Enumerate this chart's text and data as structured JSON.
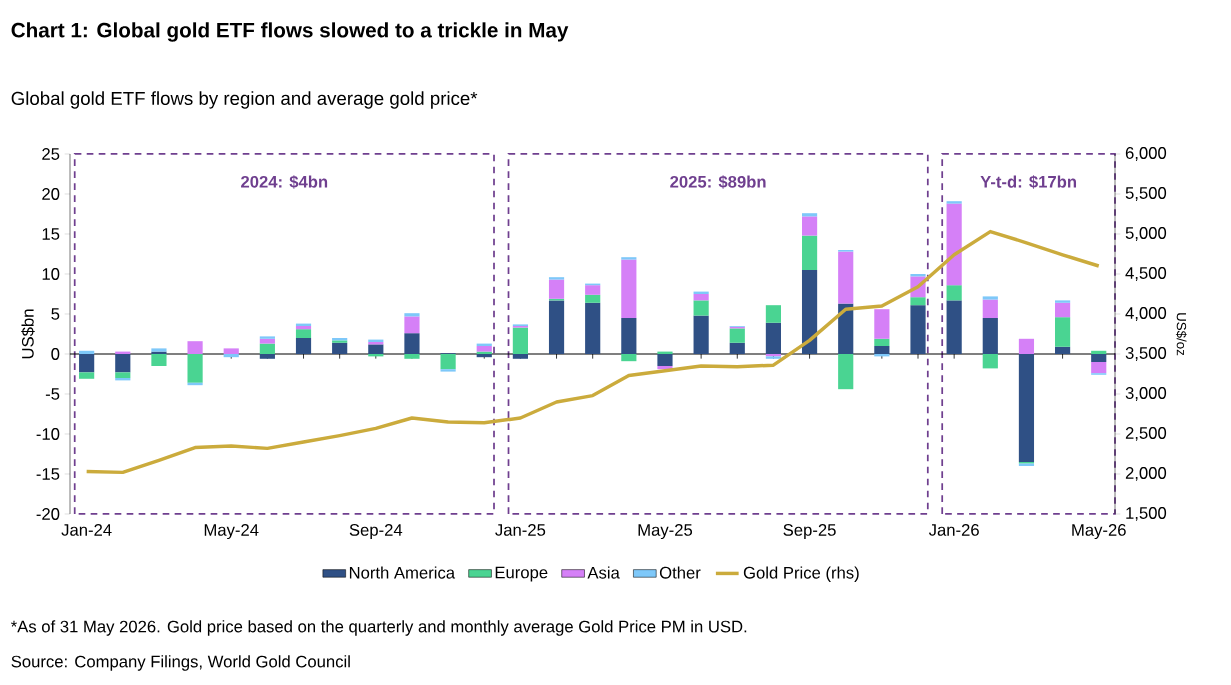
{
  "chart_data": {
    "type": "bar",
    "stacked": true,
    "title": "Chart 1: Global gold ETF flows slowed to a trickle in May",
    "subtitle": "Global gold ETF flows by region and average gold price*",
    "ylabel": "US$bn",
    "y2label": "US$/oz",
    "categories": [
      "Jan-24",
      null,
      null,
      null,
      "May-24",
      null,
      null,
      null,
      "Sep-24",
      null,
      null,
      null,
      "Jan-25",
      null,
      null,
      null,
      "May-25",
      null,
      null,
      null,
      "Sep-25",
      null,
      null,
      null,
      "Jan-26",
      null,
      null,
      null,
      "May-26"
    ],
    "series": [
      {
        "name": "North America",
        "color": "#2f5085",
        "values": [
          -2.3,
          -2.3,
          0.3,
          0,
          0,
          -0.6,
          2.0,
          1.4,
          1.2,
          2.6,
          0.1,
          -0.4,
          -0.6,
          6.7,
          6.4,
          4.5,
          -1.5,
          4.8,
          1.4,
          3.9,
          10.5,
          6.3,
          1.0,
          6.1,
          6.7,
          4.5,
          -13.5,
          0.9,
          -1.0
        ]
      },
      {
        "name": "Europe",
        "color": "#4ad492",
        "values": [
          -0.8,
          -0.7,
          -1.5,
          -3.6,
          0,
          1.3,
          1.1,
          0.3,
          -0.3,
          -0.6,
          -1.9,
          0.3,
          3.3,
          0.2,
          1.0,
          -0.9,
          0.3,
          1.9,
          1.8,
          2.2,
          4.3,
          -4.4,
          0.9,
          1.0,
          1.9,
          -1.8,
          -0.2,
          3.7,
          0.4
        ]
      },
      {
        "name": "Asia",
        "color": "#d580f7",
        "values": [
          0,
          0.3,
          0,
          1.6,
          0.7,
          0.6,
          0.4,
          null,
          0.3,
          2.1,
          0,
          0.7,
          0.2,
          2.4,
          1.2,
          7.3,
          -0.4,
          0.8,
          0.2,
          -0.3,
          2.4,
          6.5,
          3.7,
          2.6,
          10.2,
          2.3,
          1.9,
          1.8,
          -1.4
        ]
      },
      {
        "name": "Other",
        "color": "#7ec8f9",
        "values": [
          0.4,
          -0.3,
          0.4,
          -0.3,
          -0.4,
          0.3,
          0.3,
          0.3,
          0.3,
          0.4,
          -0.3,
          0.3,
          0.2,
          0.3,
          0.2,
          0.3,
          0,
          0.3,
          0.1,
          -0.3,
          0.4,
          0.2,
          -0.3,
          0.3,
          0.3,
          0.4,
          -0.3,
          0.3,
          -0.2
        ]
      },
      {
        "name": "Gold Price (rhs)",
        "color": "#cbab3c",
        "type": "line",
        "axis": "y2",
        "values": [
          2030,
          2020,
          2170,
          2330,
          2350,
          2320,
          2400,
          2480,
          2570,
          2700,
          2650,
          2640,
          2700,
          2900,
          2980,
          3230,
          3290,
          3350,
          3340,
          3360,
          3670,
          4060,
          4100,
          4340,
          4740,
          5030,
          4890,
          4740,
          4600
        ]
      }
    ],
    "ylim": [
      -20,
      25
    ],
    "yticks": [
      -20,
      -15,
      -10,
      -5,
      0,
      5,
      10,
      15,
      20,
      25
    ],
    "y2lim": [
      1500,
      6000
    ],
    "y2ticks": [
      {
        "value": 1500,
        "label": "1,500"
      },
      {
        "value": 2000,
        "label": "2,000"
      },
      {
        "value": 2500,
        "label": "2,500"
      },
      {
        "value": 3000,
        "label": "3,000"
      },
      {
        "value": 3500,
        "label": "3,500"
      },
      {
        "value": 4000,
        "label": "4,000"
      },
      {
        "value": 4500,
        "label": "4,500"
      },
      {
        "value": 5000,
        "label": "5,000"
      },
      {
        "value": 5500,
        "label": "5,500"
      },
      {
        "value": 6000,
        "label": "6,000"
      }
    ],
    "legend": "bottom",
    "annotations": [
      "2024: $4bn",
      "2025: $89bn",
      "Y-t-d: $17bn",
      "*As of 31 May 2026. Gold price based on the quarterly and monthly average Gold Price PM in USD.",
      "Source: Company Filings, World Gold Council"
    ]
  }
}
